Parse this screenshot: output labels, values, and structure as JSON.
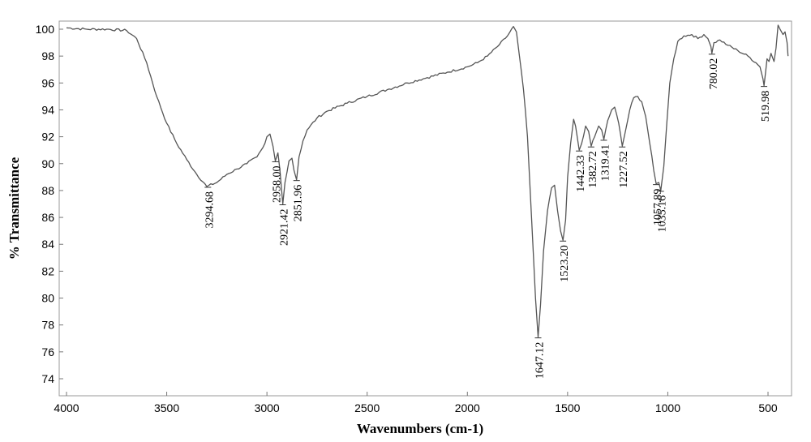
{
  "chart_data": {
    "type": "line",
    "xlabel": "Wavenumbers (cm-1)",
    "ylabel": "% Transmittance",
    "xlim": [
      4000,
      400
    ],
    "ylim": [
      73,
      101
    ],
    "x_reversed": true,
    "grid": false,
    "x_ticks": [
      {
        "value": 4000,
        "label": "4000"
      },
      {
        "value": 3500,
        "label": "3500"
      },
      {
        "value": 3000,
        "label": "3000"
      },
      {
        "value": 2500,
        "label": "2500"
      },
      {
        "value": 2000,
        "label": "2000"
      },
      {
        "value": 1500,
        "label": "1500"
      },
      {
        "value": 1000,
        "label": "1000"
      },
      {
        "value": 500,
        "label": "500"
      }
    ],
    "y_ticks": [
      {
        "value": 100,
        "label": "100"
      },
      {
        "value": 98,
        "label": "98"
      },
      {
        "value": 96,
        "label": "96"
      },
      {
        "value": 94,
        "label": "94"
      },
      {
        "value": 92,
        "label": "92"
      },
      {
        "value": 90,
        "label": "90"
      },
      {
        "value": 88,
        "label": "88"
      },
      {
        "value": 86,
        "label": "86"
      },
      {
        "value": 84,
        "label": "84"
      },
      {
        "value": 82,
        "label": "82"
      },
      {
        "value": 80,
        "label": "80"
      },
      {
        "value": 78,
        "label": "78"
      },
      {
        "value": 76,
        "label": "76"
      },
      {
        "value": 74,
        "label": "74"
      }
    ],
    "series": [
      {
        "color": "#555555",
        "points": [
          [
            4000,
            100.1
          ],
          [
            3900,
            100.0
          ],
          [
            3800,
            100.0
          ],
          [
            3700,
            99.9
          ],
          [
            3650,
            99.3
          ],
          [
            3600,
            97.5
          ],
          [
            3550,
            95.0
          ],
          [
            3500,
            93.0
          ],
          [
            3450,
            91.5
          ],
          [
            3400,
            90.3
          ],
          [
            3350,
            89.2
          ],
          [
            3300,
            88.3
          ],
          [
            3250,
            88.6
          ],
          [
            3200,
            89.2
          ],
          [
            3150,
            89.6
          ],
          [
            3100,
            90.0
          ],
          [
            3050,
            90.5
          ],
          [
            3020,
            91.2
          ],
          [
            3000,
            92.0
          ],
          [
            2985,
            92.2
          ],
          [
            2970,
            91.3
          ],
          [
            2958,
            90.2
          ],
          [
            2945,
            90.8
          ],
          [
            2935,
            89.5
          ],
          [
            2921,
            87.0
          ],
          [
            2910,
            88.6
          ],
          [
            2890,
            90.2
          ],
          [
            2875,
            90.4
          ],
          [
            2865,
            89.5
          ],
          [
            2852,
            88.8
          ],
          [
            2840,
            90.5
          ],
          [
            2820,
            91.7
          ],
          [
            2800,
            92.5
          ],
          [
            2750,
            93.4
          ],
          [
            2700,
            93.9
          ],
          [
            2600,
            94.5
          ],
          [
            2500,
            95.0
          ],
          [
            2400,
            95.5
          ],
          [
            2300,
            96.0
          ],
          [
            2200,
            96.4
          ],
          [
            2100,
            96.8
          ],
          [
            2000,
            97.2
          ],
          [
            1950,
            97.5
          ],
          [
            1900,
            98.0
          ],
          [
            1850,
            98.7
          ],
          [
            1800,
            99.5
          ],
          [
            1770,
            100.2
          ],
          [
            1755,
            99.8
          ],
          [
            1740,
            98.0
          ],
          [
            1720,
            95.5
          ],
          [
            1700,
            92.0
          ],
          [
            1680,
            86.0
          ],
          [
            1660,
            80.0
          ],
          [
            1647,
            77.1
          ],
          [
            1635,
            79.5
          ],
          [
            1620,
            83.5
          ],
          [
            1600,
            86.5
          ],
          [
            1580,
            88.2
          ],
          [
            1565,
            88.4
          ],
          [
            1550,
            86.5
          ],
          [
            1535,
            85.0
          ],
          [
            1523,
            84.3
          ],
          [
            1510,
            85.8
          ],
          [
            1500,
            89.0
          ],
          [
            1485,
            91.5
          ],
          [
            1470,
            93.3
          ],
          [
            1460,
            92.8
          ],
          [
            1442,
            91.0
          ],
          [
            1430,
            91.5
          ],
          [
            1410,
            92.8
          ],
          [
            1395,
            92.4
          ],
          [
            1382,
            91.3
          ],
          [
            1365,
            92.0
          ],
          [
            1345,
            92.8
          ],
          [
            1330,
            92.5
          ],
          [
            1319,
            91.8
          ],
          [
            1300,
            93.2
          ],
          [
            1280,
            94.0
          ],
          [
            1265,
            94.2
          ],
          [
            1245,
            93.0
          ],
          [
            1227,
            91.3
          ],
          [
            1210,
            92.5
          ],
          [
            1190,
            94.0
          ],
          [
            1170,
            94.9
          ],
          [
            1150,
            95.0
          ],
          [
            1130,
            94.6
          ],
          [
            1110,
            93.5
          ],
          [
            1090,
            91.5
          ],
          [
            1070,
            89.5
          ],
          [
            1058,
            88.5
          ],
          [
            1045,
            88.6
          ],
          [
            1035,
            88.0
          ],
          [
            1020,
            89.8
          ],
          [
            1005,
            93.0
          ],
          [
            990,
            96.0
          ],
          [
            970,
            97.8
          ],
          [
            950,
            99.1
          ],
          [
            920,
            99.5
          ],
          [
            880,
            99.6
          ],
          [
            850,
            99.3
          ],
          [
            820,
            99.6
          ],
          [
            800,
            99.3
          ],
          [
            785,
            98.7
          ],
          [
            780,
            98.2
          ],
          [
            770,
            99.0
          ],
          [
            740,
            99.2
          ],
          [
            700,
            98.8
          ],
          [
            650,
            98.4
          ],
          [
            600,
            98.0
          ],
          [
            560,
            97.5
          ],
          [
            540,
            97.2
          ],
          [
            525,
            96.3
          ],
          [
            520,
            95.8
          ],
          [
            512,
            96.8
          ],
          [
            505,
            97.8
          ],
          [
            495,
            97.6
          ],
          [
            485,
            98.2
          ],
          [
            470,
            97.6
          ],
          [
            460,
            98.6
          ],
          [
            450,
            100.3
          ],
          [
            440,
            100.0
          ],
          [
            425,
            99.6
          ],
          [
            415,
            99.8
          ],
          [
            405,
            99.0
          ],
          [
            400,
            98.0
          ]
        ]
      }
    ],
    "annotations": [
      {
        "text": "3294.68",
        "x": 3294.68,
        "y": 88.3
      },
      {
        "text": "2958.00",
        "x": 2958.0,
        "y": 90.2
      },
      {
        "text": "2921.42",
        "x": 2921.42,
        "y": 87.0
      },
      {
        "text": "2851.96",
        "x": 2851.96,
        "y": 88.8
      },
      {
        "text": "1647.12",
        "x": 1647.12,
        "y": 77.1
      },
      {
        "text": "1523.20",
        "x": 1523.2,
        "y": 84.3
      },
      {
        "text": "1442.33",
        "x": 1442.33,
        "y": 91.0
      },
      {
        "text": "1382.72",
        "x": 1382.72,
        "y": 91.3
      },
      {
        "text": "1319.41",
        "x": 1319.41,
        "y": 91.8
      },
      {
        "text": "1227.52",
        "x": 1227.52,
        "y": 91.3
      },
      {
        "text": "1057.89",
        "x": 1057.89,
        "y": 88.5
      },
      {
        "text": "1035.16",
        "x": 1035.16,
        "y": 88.0
      },
      {
        "text": "780.02",
        "x": 780.02,
        "y": 98.2
      },
      {
        "text": "519.98",
        "x": 519.98,
        "y": 95.8
      }
    ]
  }
}
